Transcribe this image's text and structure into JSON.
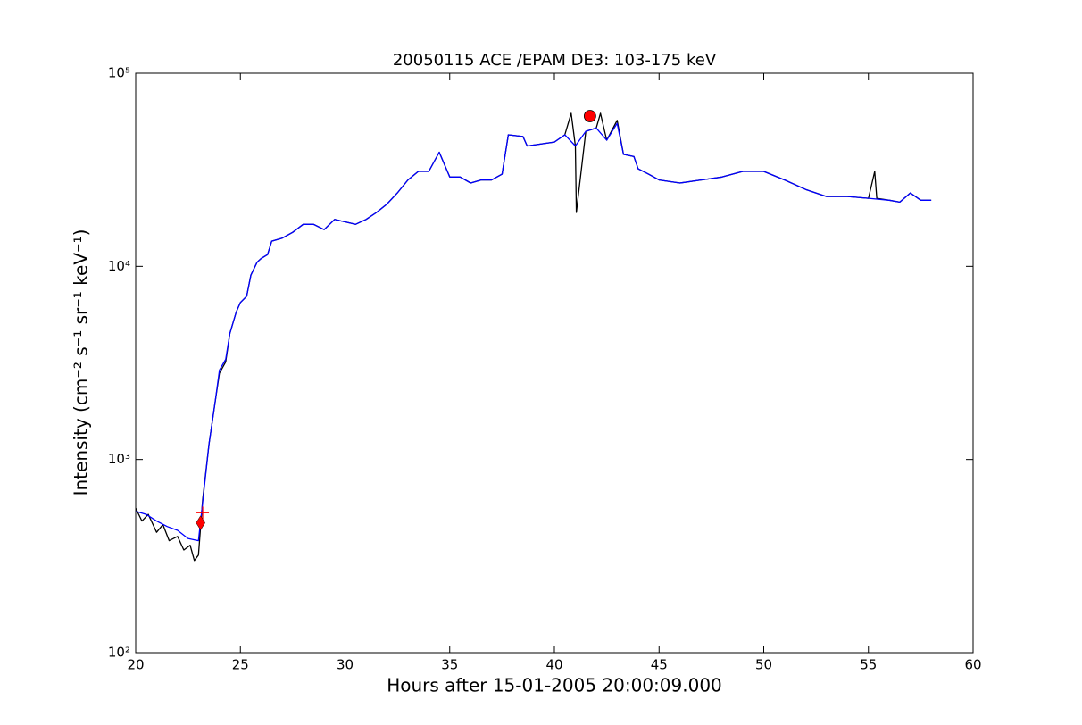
{
  "chart_data": {
    "type": "line",
    "title": "20050115 ACE /EPAM DE3: 103-175 keV",
    "x_label": "Hours after 15-01-2005 20:00:09.000",
    "y_label": "Intensity (cm⁻² s⁻¹ sr⁻¹ keV⁻¹)",
    "xlim": [
      20,
      60
    ],
    "ylim": [
      100,
      100000
    ],
    "log_y": true,
    "xticks": [
      20,
      25,
      30,
      35,
      40,
      45,
      50,
      55,
      60
    ],
    "yticks": [
      {
        "value": 100,
        "label": "10²"
      },
      {
        "value": 1000,
        "label": "10³"
      },
      {
        "value": 10000,
        "label": "10⁴"
      },
      {
        "value": 100000,
        "label": "10⁵"
      }
    ],
    "series": [
      {
        "color": "#000000",
        "x": [
          20,
          20.3,
          20.6,
          21,
          21.3,
          21.6,
          22,
          22.3,
          22.6,
          22.8,
          23,
          23.2,
          23.5,
          23.8,
          24,
          24.3,
          24.5,
          24.8,
          25,
          25.3,
          25.5,
          25.8,
          26,
          26.3,
          26.5,
          27,
          27.5,
          28,
          28.5,
          29,
          29.5,
          30,
          30.5,
          31,
          31.5,
          32,
          32.5,
          33,
          33.5,
          34,
          34.5,
          35,
          35.5,
          36,
          36.5,
          37,
          37.5,
          37.8,
          38.5,
          38.7,
          40,
          40.5,
          40.8,
          41,
          41.05,
          41.5,
          42,
          42.2,
          42.5,
          43,
          43.3,
          43.8,
          44,
          44.5,
          45,
          46,
          47,
          48,
          49,
          50,
          51,
          52,
          53,
          54,
          55,
          55.3,
          55.4,
          56,
          56.5,
          57,
          57.5,
          58
        ],
        "values": [
          560,
          480,
          520,
          420,
          460,
          380,
          400,
          340,
          360,
          300,
          320,
          620,
          1200,
          2000,
          2800,
          3200,
          4500,
          5800,
          6500,
          7000,
          9000,
          10500,
          11000,
          11500,
          13500,
          14000,
          15000,
          16500,
          16500,
          15500,
          17500,
          17000,
          16500,
          17500,
          19000,
          21000,
          24000,
          28000,
          31000,
          31000,
          39000,
          29000,
          29000,
          27000,
          28000,
          28000,
          30000,
          48000,
          47000,
          42000,
          44000,
          48000,
          62000,
          42000,
          19000,
          50000,
          52000,
          62000,
          45000,
          57000,
          38000,
          37000,
          32000,
          30000,
          28000,
          27000,
          28000,
          29000,
          31000,
          31000,
          28000,
          25000,
          23000,
          23000,
          22500,
          31000,
          22500,
          22000,
          21500,
          24000,
          22000,
          22000
        ]
      },
      {
        "color": "#0000ff",
        "x": [
          20,
          20.5,
          21,
          21.5,
          22,
          22.5,
          23,
          23.2,
          23.5,
          23.8,
          24,
          24.3,
          24.5,
          24.8,
          25,
          25.3,
          25.5,
          25.8,
          26,
          26.3,
          26.5,
          27,
          27.5,
          28,
          28.5,
          29,
          29.5,
          30,
          30.5,
          31,
          31.5,
          32,
          32.5,
          33,
          33.5,
          34,
          34.5,
          35,
          35.5,
          36,
          36.5,
          37,
          37.5,
          37.8,
          38.5,
          38.7,
          40,
          40.5,
          41,
          41.5,
          42,
          42.5,
          43,
          43.3,
          43.8,
          44,
          44.5,
          45,
          46,
          47,
          48,
          49,
          50,
          51,
          52,
          53,
          54,
          55,
          56,
          56.5,
          57,
          57.5,
          58
        ],
        "values": [
          540,
          520,
          480,
          450,
          430,
          390,
          380,
          600,
          1200,
          2000,
          2900,
          3300,
          4500,
          5800,
          6500,
          7000,
          9000,
          10500,
          11000,
          11500,
          13500,
          14000,
          15000,
          16500,
          16500,
          15500,
          17500,
          17000,
          16500,
          17500,
          19000,
          21000,
          24000,
          28000,
          31000,
          31000,
          39000,
          29000,
          29000,
          27000,
          28000,
          28000,
          30000,
          48000,
          47000,
          42000,
          44000,
          48000,
          42000,
          50000,
          52000,
          45000,
          55000,
          38000,
          37000,
          32000,
          30000,
          28000,
          27000,
          28000,
          29000,
          31000,
          31000,
          28000,
          25000,
          23000,
          23000,
          22500,
          22000,
          21500,
          24000,
          22000,
          22000
        ]
      }
    ],
    "markers": [
      {
        "x": 23.2,
        "y": 530,
        "shape": "plus",
        "color": "#ff0000"
      },
      {
        "x": 23.1,
        "y": 470,
        "shape": "diamond",
        "color": "#ff0000"
      },
      {
        "x": 41.7,
        "y": 60000,
        "shape": "circle",
        "color": "#ff0000"
      }
    ]
  }
}
